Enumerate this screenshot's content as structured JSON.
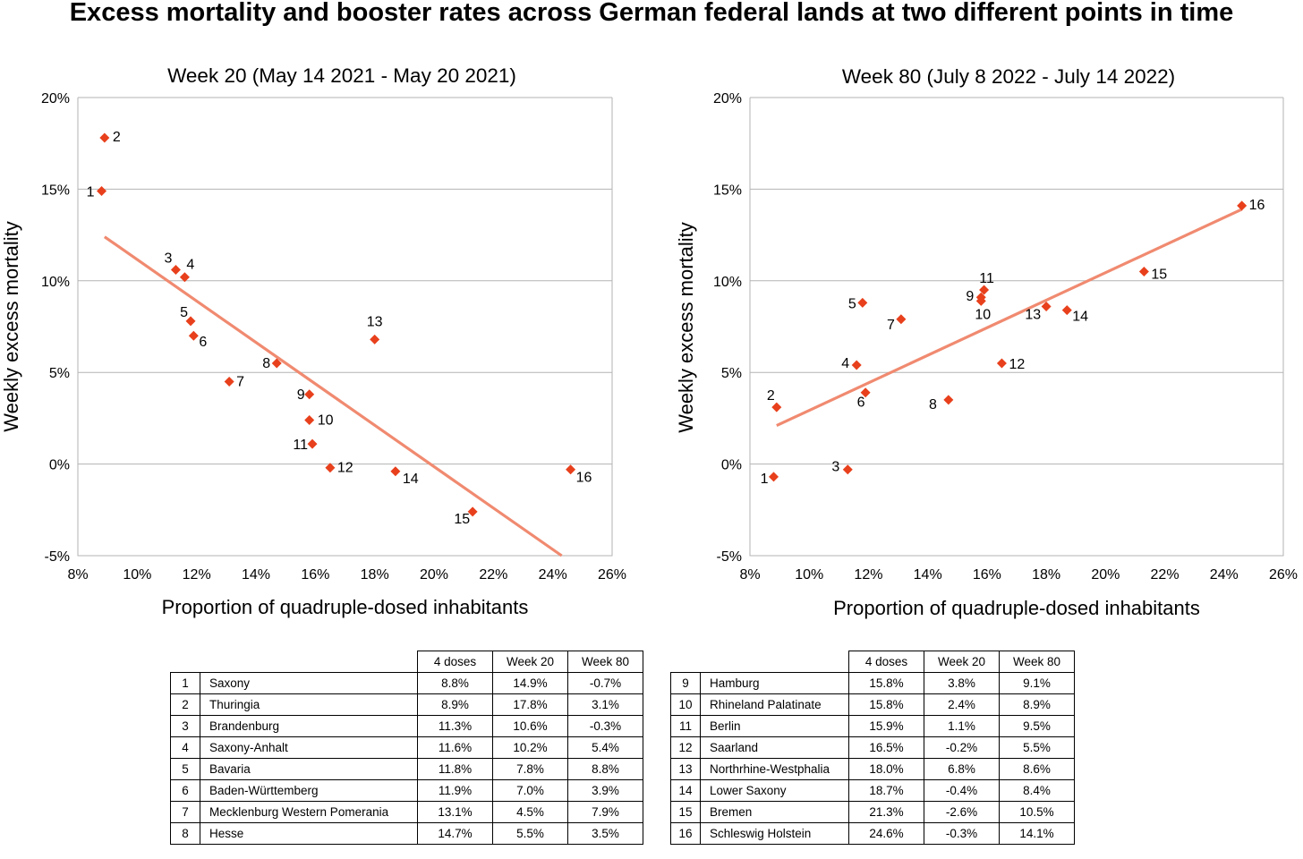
{
  "title": "Excess mortality and booster rates across German federal lands at two different points in time",
  "chart_data": [
    {
      "type": "scatter",
      "title": "Week 20 (May 14 2021 - May 20 2021)",
      "xlabel": "Proportion of quadruple-dosed inhabitants",
      "ylabel": "Weekly excess mortality",
      "xlim": [
        8,
        26
      ],
      "ylim": [
        -5,
        20
      ],
      "x_ticks": [
        8,
        10,
        12,
        14,
        16,
        18,
        20,
        22,
        24,
        26
      ],
      "y_ticks": [
        -5,
        0,
        5,
        10,
        15,
        20
      ],
      "unit": "%",
      "grid": "horizontal",
      "marker_color": "#e8401c",
      "trendline_color": "#f08a70",
      "trendline": [
        [
          8.9,
          12.4
        ],
        [
          24.3,
          -5.0
        ]
      ],
      "points": [
        {
          "label": "1",
          "x": 8.8,
          "y": 14.9
        },
        {
          "label": "2",
          "x": 8.9,
          "y": 17.8
        },
        {
          "label": "3",
          "x": 11.3,
          "y": 10.6
        },
        {
          "label": "4",
          "x": 11.6,
          "y": 10.2
        },
        {
          "label": "5",
          "x": 11.8,
          "y": 7.8
        },
        {
          "label": "6",
          "x": 11.9,
          "y": 7.0
        },
        {
          "label": "7",
          "x": 13.1,
          "y": 4.5
        },
        {
          "label": "8",
          "x": 14.7,
          "y": 5.5
        },
        {
          "label": "9",
          "x": 15.8,
          "y": 3.8
        },
        {
          "label": "10",
          "x": 15.8,
          "y": 2.4
        },
        {
          "label": "11",
          "x": 15.9,
          "y": 1.1
        },
        {
          "label": "12",
          "x": 16.5,
          "y": -0.2
        },
        {
          "label": "13",
          "x": 18.0,
          "y": 6.8
        },
        {
          "label": "14",
          "x": 18.7,
          "y": -0.4
        },
        {
          "label": "15",
          "x": 21.3,
          "y": -2.6
        },
        {
          "label": "16",
          "x": 24.6,
          "y": -0.3
        }
      ]
    },
    {
      "type": "scatter",
      "title": "Week 80 (July 8 2022 - July 14 2022)",
      "xlabel": "Proportion of quadruple-dosed inhabitants",
      "ylabel": "Weekly excess mortality",
      "xlim": [
        8,
        26
      ],
      "ylim": [
        -5,
        20
      ],
      "x_ticks": [
        8,
        10,
        12,
        14,
        16,
        18,
        20,
        22,
        24,
        26
      ],
      "y_ticks": [
        -5,
        0,
        5,
        10,
        15,
        20
      ],
      "unit": "%",
      "grid": "horizontal",
      "marker_color": "#e8401c",
      "trendline_color": "#f08a70",
      "trendline": [
        [
          8.9,
          2.1
        ],
        [
          24.6,
          13.9
        ]
      ],
      "points": [
        {
          "label": "1",
          "x": 8.8,
          "y": -0.7
        },
        {
          "label": "2",
          "x": 8.9,
          "y": 3.1
        },
        {
          "label": "3",
          "x": 11.3,
          "y": -0.3
        },
        {
          "label": "4",
          "x": 11.6,
          "y": 5.4
        },
        {
          "label": "5",
          "x": 11.8,
          "y": 8.8
        },
        {
          "label": "6",
          "x": 11.9,
          "y": 3.9
        },
        {
          "label": "7",
          "x": 13.1,
          "y": 7.9
        },
        {
          "label": "8",
          "x": 14.7,
          "y": 3.5
        },
        {
          "label": "9",
          "x": 15.8,
          "y": 9.1
        },
        {
          "label": "10",
          "x": 15.8,
          "y": 8.9
        },
        {
          "label": "11",
          "x": 15.9,
          "y": 9.5
        },
        {
          "label": "12",
          "x": 16.5,
          "y": 5.5
        },
        {
          "label": "13",
          "x": 18.0,
          "y": 8.6
        },
        {
          "label": "14",
          "x": 18.7,
          "y": 8.4
        },
        {
          "label": "15",
          "x": 21.3,
          "y": 10.5
        },
        {
          "label": "16",
          "x": 24.6,
          "y": 14.1
        }
      ]
    }
  ],
  "tables": {
    "headers": [
      "4 doses",
      "Week 20",
      "Week 80"
    ],
    "left": [
      {
        "num": "1",
        "name": "Saxony",
        "doses": "8.8%",
        "w20": "14.9%",
        "w80": "-0.7%"
      },
      {
        "num": "2",
        "name": "Thuringia",
        "doses": "8.9%",
        "w20": "17.8%",
        "w80": "3.1%"
      },
      {
        "num": "3",
        "name": "Brandenburg",
        "doses": "11.3%",
        "w20": "10.6%",
        "w80": "-0.3%"
      },
      {
        "num": "4",
        "name": "Saxony-Anhalt",
        "doses": "11.6%",
        "w20": "10.2%",
        "w80": "5.4%"
      },
      {
        "num": "5",
        "name": "Bavaria",
        "doses": "11.8%",
        "w20": "7.8%",
        "w80": "8.8%"
      },
      {
        "num": "6",
        "name": "Baden-Württemberg",
        "doses": "11.9%",
        "w20": "7.0%",
        "w80": "3.9%"
      },
      {
        "num": "7",
        "name": "Mecklenburg Western Pomerania",
        "doses": "13.1%",
        "w20": "4.5%",
        "w80": "7.9%"
      },
      {
        "num": "8",
        "name": "Hesse",
        "doses": "14.7%",
        "w20": "5.5%",
        "w80": "3.5%"
      }
    ],
    "right": [
      {
        "num": "9",
        "name": "Hamburg",
        "doses": "15.8%",
        "w20": "3.8%",
        "w80": "9.1%"
      },
      {
        "num": "10",
        "name": "Rhineland Palatinate",
        "doses": "15.8%",
        "w20": "2.4%",
        "w80": "8.9%"
      },
      {
        "num": "11",
        "name": "Berlin",
        "doses": "15.9%",
        "w20": "1.1%",
        "w80": "9.5%"
      },
      {
        "num": "12",
        "name": "Saarland",
        "doses": "16.5%",
        "w20": "-0.2%",
        "w80": "5.5%"
      },
      {
        "num": "13",
        "name": "Northrhine-Westphalia",
        "doses": "18.0%",
        "w20": "6.8%",
        "w80": "8.6%"
      },
      {
        "num": "14",
        "name": "Lower Saxony",
        "doses": "18.7%",
        "w20": "-0.4%",
        "w80": "8.4%"
      },
      {
        "num": "15",
        "name": "Bremen",
        "doses": "21.3%",
        "w20": "-2.6%",
        "w80": "10.5%"
      },
      {
        "num": "16",
        "name": "Schleswig Holstein",
        "doses": "24.6%",
        "w20": "-0.3%",
        "w80": "14.1%"
      }
    ]
  }
}
